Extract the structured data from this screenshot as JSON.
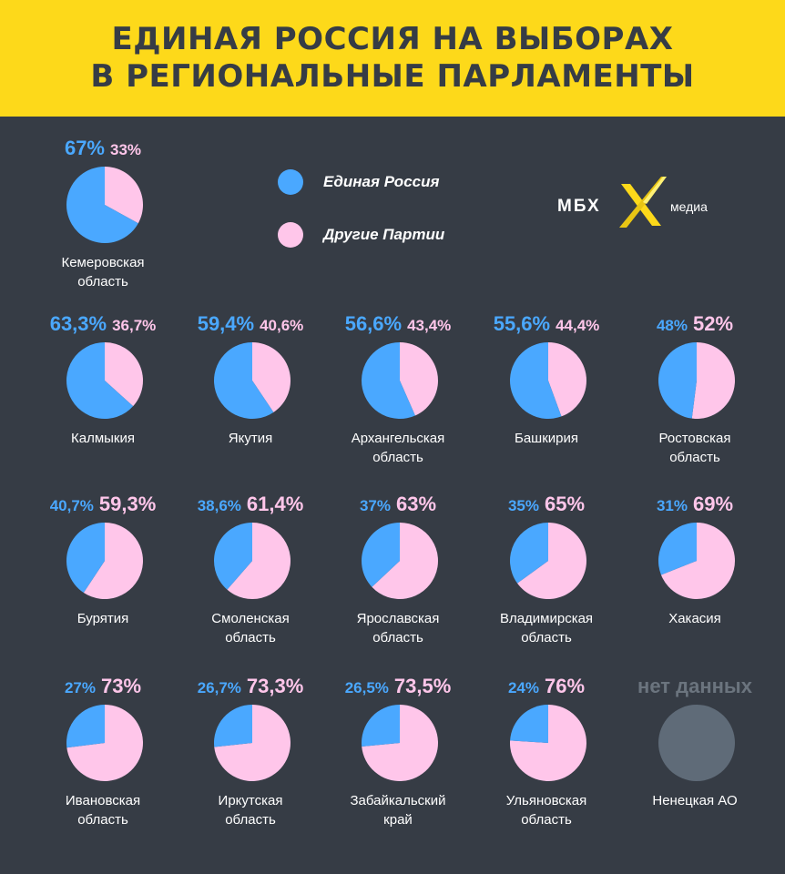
{
  "title": {
    "line1": "ЕДИНАЯ РОССИЯ НА ВЫБОРАХ",
    "line2": "В РЕГИОНАЛЬНЫЕ ПАРЛАМЕНТЫ"
  },
  "legend": {
    "er": "Единая Россия",
    "other": "Другие Партии"
  },
  "logo": {
    "mbx": "МБХ",
    "media": "медиа"
  },
  "colors": {
    "er": "#4aa8ff",
    "other": "#ffc6ea",
    "nodata": "#5f6b78",
    "background": "#363c45",
    "header": "#fdd91a"
  },
  "chart_data": {
    "type": "pie",
    "series_names": [
      "Единая Россия",
      "Другие Партии"
    ],
    "regions": [
      {
        "name": "Кемеровская область",
        "er": 67,
        "other": 33,
        "er_label": "67%",
        "other_label": "33%"
      },
      {
        "name": "Калмыкия",
        "er": 63.3,
        "other": 36.7,
        "er_label": "63,3%",
        "other_label": "36,7%"
      },
      {
        "name": "Якутия",
        "er": 59.4,
        "other": 40.6,
        "er_label": "59,4%",
        "other_label": "40,6%"
      },
      {
        "name": "Архангельская область",
        "er": 56.6,
        "other": 43.4,
        "er_label": "56,6%",
        "other_label": "43,4%"
      },
      {
        "name": "Башкирия",
        "er": 55.6,
        "other": 44.4,
        "er_label": "55,6%",
        "other_label": "44,4%"
      },
      {
        "name": "Ростовская область",
        "er": 48,
        "other": 52,
        "er_label": "48%",
        "other_label": "52%"
      },
      {
        "name": "Бурятия",
        "er": 40.7,
        "other": 59.3,
        "er_label": "40,7%",
        "other_label": "59,3%"
      },
      {
        "name": "Смоленская область",
        "er": 38.6,
        "other": 61.4,
        "er_label": "38,6%",
        "other_label": "61,4%"
      },
      {
        "name": "Ярославская область",
        "er": 37,
        "other": 63,
        "er_label": "37%",
        "other_label": "63%"
      },
      {
        "name": "Владимирская область",
        "er": 35,
        "other": 65,
        "er_label": "35%",
        "other_label": "65%"
      },
      {
        "name": "Хакасия",
        "er": 31,
        "other": 69,
        "er_label": "31%",
        "other_label": "69%"
      },
      {
        "name": "Ивановская область",
        "er": 27,
        "other": 73,
        "er_label": "27%",
        "other_label": "73%"
      },
      {
        "name": "Иркутская область",
        "er": 26.7,
        "other": 73.3,
        "er_label": "26,7%",
        "other_label": "73,3%"
      },
      {
        "name": "Забайкальский край",
        "er": 26.5,
        "other": 73.5,
        "er_label": "26,5%",
        "other_label": "73,5%"
      },
      {
        "name": "Ульяновская область",
        "er": 24,
        "other": 76,
        "er_label": "24%",
        "other_label": "76%"
      },
      {
        "name": "Ненецкая АО",
        "er": null,
        "other": null,
        "nodata_label": "нет данных"
      }
    ]
  }
}
